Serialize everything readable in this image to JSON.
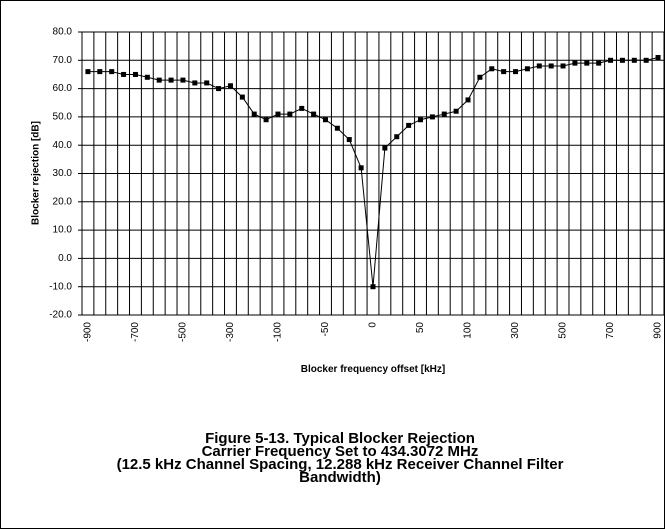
{
  "chart_data": {
    "type": "line",
    "y_label": "Blocker rejection [dB]",
    "x_label": "Blocker frequency offset [kHz]",
    "caption": [
      "Figure 5-13. Typical Blocker Rejection",
      "Carrier Frequency Set to 434.3072 MHz",
      "(12.5 kHz Channel Spacing, 12.288 kHz Receiver Channel Filter",
      "Bandwidth)"
    ],
    "categories": [
      "-900",
      null,
      null,
      null,
      "-700",
      null,
      null,
      null,
      "-500",
      null,
      null,
      null,
      "-300",
      null,
      null,
      null,
      "-100",
      null,
      null,
      null,
      "-50",
      null,
      null,
      null,
      "0",
      null,
      null,
      null,
      "50",
      null,
      null,
      null,
      "100",
      null,
      null,
      null,
      "300",
      null,
      null,
      null,
      "500",
      null,
      null,
      null,
      "700",
      null,
      null,
      null,
      "900"
    ],
    "values": [
      66,
      66,
      66,
      65,
      65,
      64,
      63,
      63,
      63,
      62,
      62,
      60,
      61,
      57,
      51,
      49,
      51,
      51,
      53,
      51,
      49,
      46,
      42,
      32,
      -10,
      39,
      43,
      47,
      49,
      50,
      51,
      52,
      56,
      64,
      67,
      66,
      66,
      67,
      68,
      68,
      68,
      69,
      69,
      69,
      70,
      70,
      70,
      70,
      71
    ],
    "color": "#000000",
    "ylim": [
      -20,
      80
    ],
    "yticks": [
      {
        "value": -20,
        "label": "-20.0"
      },
      {
        "value": -10,
        "label": "-10.0"
      },
      {
        "value": 0,
        "label": "0.0"
      },
      {
        "value": 10,
        "label": "10.0"
      },
      {
        "value": 20,
        "label": "20.0"
      },
      {
        "value": 30,
        "label": "30.0"
      },
      {
        "value": 40,
        "label": "40.0"
      },
      {
        "value": 50,
        "label": "50.0"
      },
      {
        "value": 60,
        "label": "60.0"
      },
      {
        "value": 70,
        "label": "70.0"
      },
      {
        "value": 80,
        "label": "80.0"
      }
    ],
    "grid": true
  }
}
